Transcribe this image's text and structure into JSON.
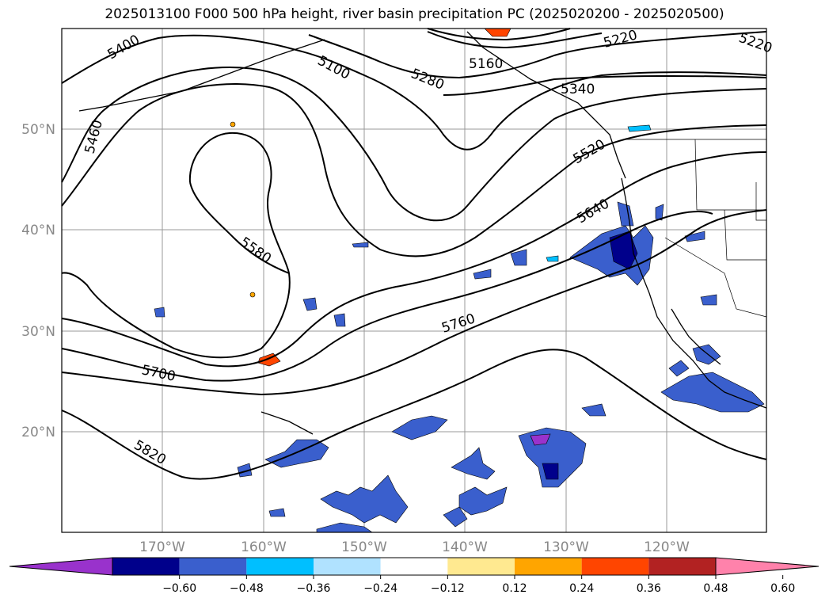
{
  "title": "2025013100 F000 500 hPa height, river basin precipitation PC (2025020200 - 2025020500)",
  "lat_labels": [
    "50°N",
    "40°N",
    "30°N",
    "20°N"
  ],
  "lon_labels": [
    "170°W",
    "160°W",
    "150°W",
    "140°W",
    "130°W",
    "120°W"
  ],
  "contour_labels": [
    "5400",
    "5460",
    "5100",
    "5280",
    "5160",
    "5220",
    "5220",
    "5340",
    "5520",
    "5640",
    "5580",
    "5700",
    "5760",
    "5820"
  ],
  "colorbar": {
    "ticks": [
      "−0.60",
      "−0.48",
      "−0.36",
      "−0.24",
      "−0.12",
      "0.12",
      "0.24",
      "0.36",
      "0.48",
      "0.60"
    ],
    "colors": [
      "#9932cc",
      "#00008b",
      "#3a5fcd",
      "#00bfff",
      "#b0e2ff",
      "#ffffff",
      "#ffe990",
      "#ffa500",
      "#ff4500",
      "#b22222",
      "#ff82ab"
    ]
  }
}
